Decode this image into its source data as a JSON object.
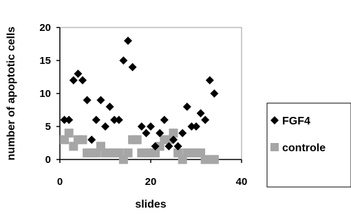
{
  "chart_data": {
    "type": "scatter",
    "title": "",
    "xlabel": "slides",
    "ylabel": "number of apoptotic cells",
    "xlim": [
      0,
      40
    ],
    "ylim": [
      0,
      20
    ],
    "xticks": [
      "0",
      "20",
      "40"
    ],
    "yticks": [
      "0",
      "5",
      "10",
      "15",
      "20"
    ],
    "grid": false,
    "legend_position": "right",
    "series": [
      {
        "name": "FGF4",
        "marker": "diamond",
        "color": "#000000",
        "points": [
          [
            1,
            6
          ],
          [
            2,
            6
          ],
          [
            3,
            12
          ],
          [
            4,
            13
          ],
          [
            5,
            12
          ],
          [
            6,
            9
          ],
          [
            7,
            3
          ],
          [
            8,
            6
          ],
          [
            9,
            9
          ],
          [
            10,
            5
          ],
          [
            11,
            8
          ],
          [
            12,
            6
          ],
          [
            13,
            6
          ],
          [
            14,
            15
          ],
          [
            15,
            18
          ],
          [
            16,
            14
          ],
          [
            18,
            5
          ],
          [
            19,
            4
          ],
          [
            20,
            5
          ],
          [
            21,
            2
          ],
          [
            22,
            4
          ],
          [
            23,
            6
          ],
          [
            24,
            2
          ],
          [
            25,
            3
          ],
          [
            26,
            2
          ],
          [
            27,
            4
          ],
          [
            28,
            8
          ],
          [
            29,
            5
          ],
          [
            30,
            5
          ],
          [
            31,
            7
          ],
          [
            32,
            6
          ],
          [
            33,
            12
          ],
          [
            34,
            10
          ]
        ]
      },
      {
        "name": "controle",
        "marker": "square",
        "color": "#a6a6a6",
        "points": [
          [
            1,
            3
          ],
          [
            2,
            4
          ],
          [
            3,
            2
          ],
          [
            4,
            3
          ],
          [
            5,
            3
          ],
          [
            6,
            1
          ],
          [
            7,
            1
          ],
          [
            8,
            1
          ],
          [
            9,
            2
          ],
          [
            10,
            1
          ],
          [
            11,
            1
          ],
          [
            12,
            1
          ],
          [
            13,
            1
          ],
          [
            14,
            0
          ],
          [
            15,
            1
          ],
          [
            16,
            3
          ],
          [
            17,
            3
          ],
          [
            18,
            1
          ],
          [
            19,
            1
          ],
          [
            20,
            1
          ],
          [
            21,
            1
          ],
          [
            22,
            2
          ],
          [
            23,
            3
          ],
          [
            24,
            3
          ],
          [
            25,
            4
          ],
          [
            26,
            1
          ],
          [
            27,
            0
          ],
          [
            28,
            1
          ],
          [
            29,
            1
          ],
          [
            30,
            1
          ],
          [
            31,
            1
          ],
          [
            32,
            0
          ],
          [
            33,
            0
          ],
          [
            34,
            0
          ]
        ]
      }
    ]
  }
}
